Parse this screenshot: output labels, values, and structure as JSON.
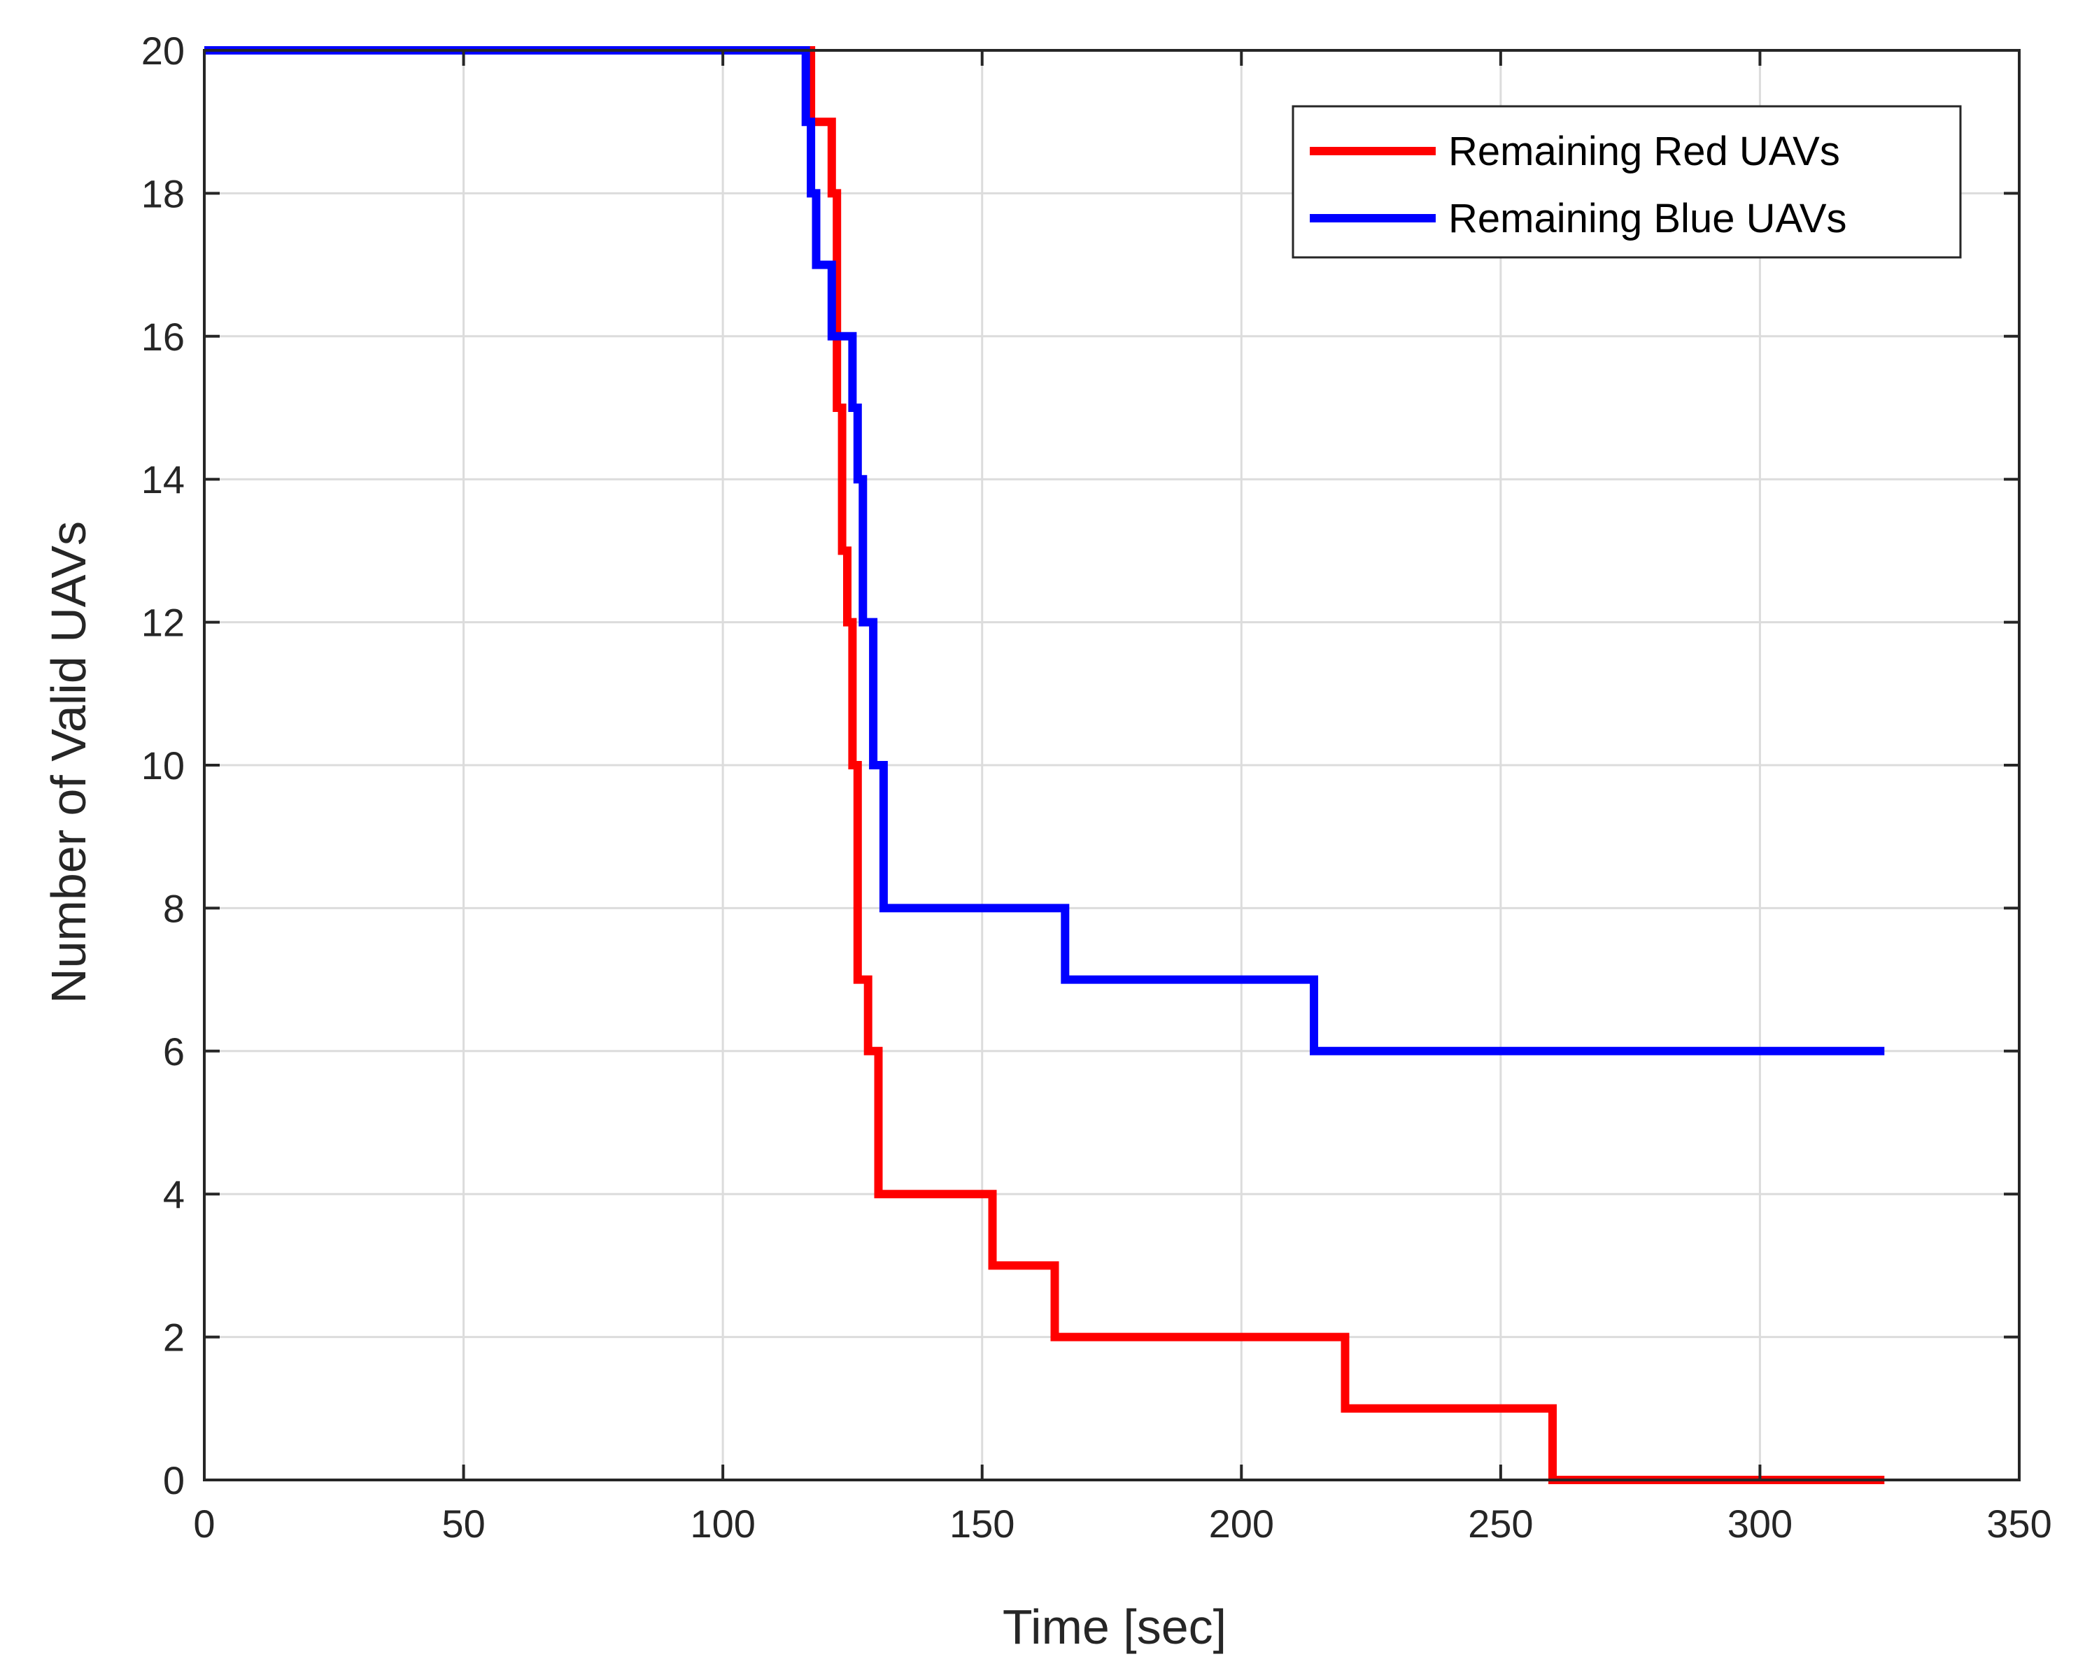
{
  "chart_data": {
    "type": "line",
    "style": "step",
    "xlabel": "Time [sec]",
    "ylabel": "Number of Valid UAVs",
    "xlim": [
      0,
      350
    ],
    "ylim": [
      0,
      20
    ],
    "xticks": [
      0,
      50,
      100,
      150,
      200,
      250,
      300,
      350
    ],
    "yticks": [
      0,
      2,
      4,
      6,
      8,
      10,
      12,
      14,
      16,
      18,
      20
    ],
    "grid": true,
    "legend_position": "top-right",
    "series": [
      {
        "name": "Remaining Red UAVs",
        "color": "#ff0000",
        "points": [
          [
            0,
            20
          ],
          [
            117,
            20
          ],
          [
            117,
            19
          ],
          [
            121,
            19
          ],
          [
            121,
            18
          ],
          [
            122,
            18
          ],
          [
            122,
            15
          ],
          [
            123,
            15
          ],
          [
            123,
            13
          ],
          [
            124,
            13
          ],
          [
            124,
            12
          ],
          [
            125,
            12
          ],
          [
            125,
            10
          ],
          [
            126,
            10
          ],
          [
            126,
            7
          ],
          [
            128,
            7
          ],
          [
            128,
            6
          ],
          [
            130,
            6
          ],
          [
            130,
            4
          ],
          [
            152,
            4
          ],
          [
            152,
            3
          ],
          [
            164,
            3
          ],
          [
            164,
            2
          ],
          [
            220,
            2
          ],
          [
            220,
            1
          ],
          [
            260,
            1
          ],
          [
            260,
            0
          ],
          [
            324,
            0
          ]
        ]
      },
      {
        "name": "Remaining Blue UAVs",
        "color": "#0000ff",
        "points": [
          [
            0,
            20
          ],
          [
            116,
            20
          ],
          [
            116,
            19
          ],
          [
            117,
            19
          ],
          [
            117,
            18
          ],
          [
            118,
            18
          ],
          [
            118,
            17
          ],
          [
            121,
            17
          ],
          [
            121,
            16
          ],
          [
            125,
            16
          ],
          [
            125,
            15
          ],
          [
            126,
            15
          ],
          [
            126,
            14
          ],
          [
            127,
            14
          ],
          [
            127,
            12
          ],
          [
            129,
            12
          ],
          [
            129,
            10
          ],
          [
            131,
            10
          ],
          [
            131,
            8
          ],
          [
            166,
            8
          ],
          [
            166,
            7
          ],
          [
            214,
            7
          ],
          [
            214,
            6
          ],
          [
            324,
            6
          ]
        ]
      }
    ]
  }
}
